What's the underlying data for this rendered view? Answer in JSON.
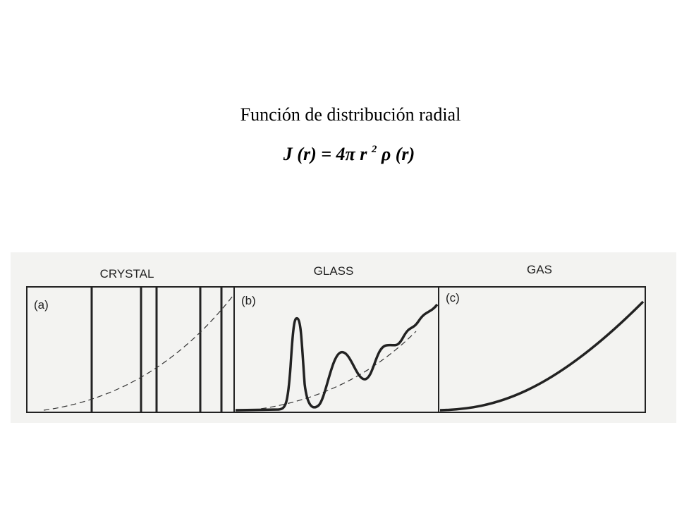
{
  "title": "Función de distribución radial",
  "formula": {
    "lhs": "J (r) = 4π r",
    "exponent": "2",
    "rhs": "ρ (r)"
  },
  "panels": [
    {
      "name": "CRYSTAL",
      "label": "(a)"
    },
    {
      "name": "GLASS",
      "label": "(b)"
    },
    {
      "name": "GAS",
      "label": "(c)"
    }
  ]
}
